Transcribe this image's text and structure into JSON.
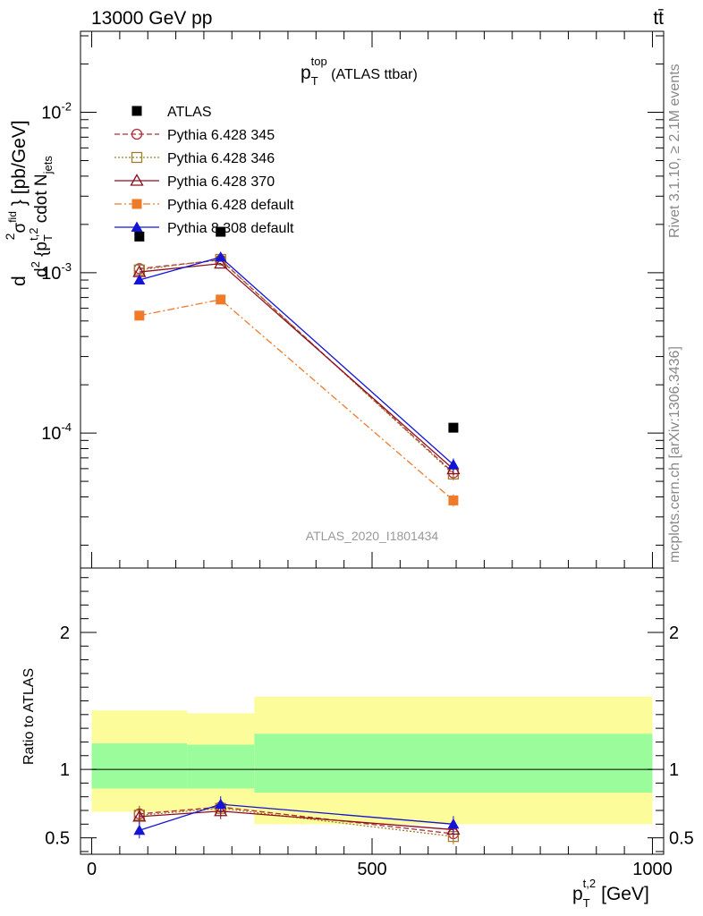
{
  "header": {
    "energy": "13000 GeV pp",
    "process": "tt̄"
  },
  "side_text": {
    "rivet": "Rivet 3.1.10, ≥ 2.1M events",
    "mcplots": "mcplots.cern.ch [arXiv:1306.3436]"
  },
  "colors": {
    "ATLAS": "#000000",
    "p345": "#b22c3b",
    "p346": "#a07d2c",
    "p370": "#8c0f1e",
    "pdefault": "#ee7a2a",
    "p8": "#1414d6",
    "band_inner": "#9bfc9b",
    "band_outer": "#fcfc9b",
    "axis_text_gray": "#888888"
  },
  "chart_data": {
    "type": "line",
    "title": "p_T^{top} (ATLAS ttbar)",
    "title_main": "p",
    "title_sub": "T",
    "title_sup": "top",
    "title_rest": " (ATLAS ttbar)",
    "watermark": "ATLAS_2020_I1801434",
    "xlabel": "p_T^{t,2} [GeV]",
    "ylabel": "d^2σ^fid / d^2{p_T^{t,2} cdot N_jets} [pb/GeV]",
    "ratio_ylabel": "Ratio to ATLAS",
    "xlim": [
      -20,
      1020
    ],
    "ylim": [
      1.44e-05,
      0.032
    ],
    "yscale": "log",
    "ratio_ylim": [
      0.38,
      2.47
    ],
    "x_ticks": [
      0,
      500,
      1000
    ],
    "x_tick_labels": [
      "0",
      "500",
      "1000"
    ],
    "y_ticks": [
      0.0001,
      0.001,
      0.01
    ],
    "y_tick_labels": [
      "10^-4",
      "10^-3",
      "10^-2"
    ],
    "ratio_ticks": [
      0.5,
      1,
      2
    ],
    "ratio_tick_labels": [
      "0.5",
      "1",
      "2"
    ],
    "x": [
      85,
      230,
      645
    ],
    "bins": [
      [
        0,
        170
      ],
      [
        170,
        290
      ],
      [
        290,
        1000
      ]
    ],
    "legend_position": "top-left",
    "series": [
      {
        "name": "ATLAS",
        "key": "ATLAS",
        "values": [
          0.00168,
          0.0018,
          0.000108
        ],
        "marker": "square-filled",
        "dash": ""
      },
      {
        "name": "Pythia 6.428 345",
        "key": "p345",
        "values": [
          0.00106,
          0.0012,
          5.65e-05
        ],
        "marker": "circle-open",
        "dash": "6,3"
      },
      {
        "name": "Pythia 6.428 346",
        "key": "p346",
        "values": [
          0.00104,
          0.00121,
          5.55e-05
        ],
        "marker": "square-open",
        "dash": "2,2"
      },
      {
        "name": "Pythia 6.428 370",
        "key": "p370",
        "values": [
          0.00101,
          0.00114,
          5.95e-05
        ],
        "marker": "triangle-open",
        "dash": ""
      },
      {
        "name": "Pythia 6.428 default",
        "key": "pdefault",
        "values": [
          0.00054,
          0.00068,
          3.8e-05
        ],
        "marker": "square-filled",
        "dash": "8,3,2,3"
      },
      {
        "name": "Pythia 8.308 default",
        "key": "p8",
        "values": [
          0.0009,
          0.00125,
          6.35e-05
        ],
        "marker": "triangle-filled",
        "dash": ""
      }
    ],
    "ratio_series": [
      {
        "key": "p345",
        "values": [
          0.675,
          0.725,
          0.53
        ]
      },
      {
        "key": "p346",
        "values": [
          0.665,
          0.715,
          0.51
        ]
      },
      {
        "key": "p370",
        "values": [
          0.655,
          0.695,
          0.56
        ]
      },
      {
        "key": "p8",
        "values": [
          0.555,
          0.745,
          0.6
        ]
      }
    ],
    "ratio_bands": [
      {
        "inner": [
          0.86,
          1.19
        ],
        "outer": [
          0.69,
          1.43
        ]
      },
      {
        "inner": [
          0.86,
          1.18
        ],
        "outer": [
          0.7,
          1.41
        ]
      },
      {
        "inner": [
          0.83,
          1.26
        ],
        "outer": [
          0.6,
          1.53
        ]
      }
    ]
  }
}
